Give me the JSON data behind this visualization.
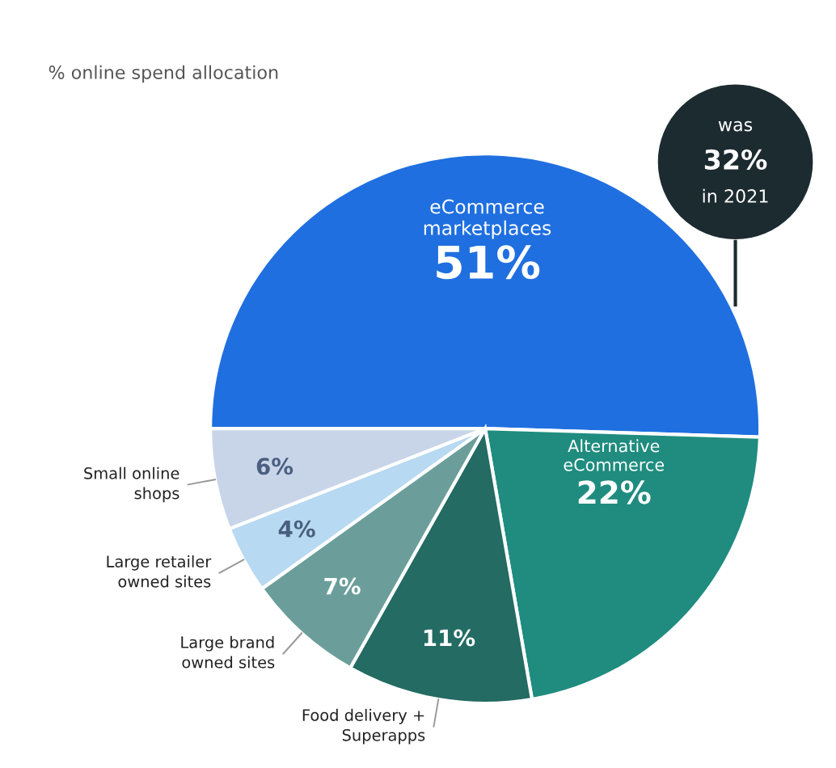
{
  "chart_data": {
    "type": "pie",
    "title": "% online spend allocation",
    "categories": [
      "eCommerce\nmarketplaces",
      "Alternative\neCommerce",
      "Food delivery +\nSuperapps",
      "Large brand\nowned sites",
      "Large retailer\nowned sites",
      "Small online\nshops"
    ],
    "values": [
      51,
      22,
      11,
      7,
      4,
      6
    ],
    "colors": [
      "#1f6fe0",
      "#1f8c7f",
      "#236b63",
      "#6b9e9a",
      "#b7d9f1",
      "#c8d5e9"
    ],
    "value_labels": [
      "51%",
      "22%",
      "11%",
      "7%",
      "4%",
      "6%"
    ],
    "annotations": [
      "was\n32%\nin 2021"
    ]
  }
}
